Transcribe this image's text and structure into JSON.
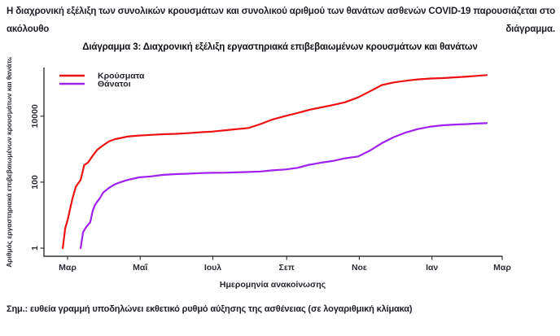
{
  "document": {
    "intro": "Η διαχρονική εξέλιξη των συνολικών κρουσμάτων και συνολικού αριθμού των θανάτων ασθενών COVID-19 παρουσιάζεται στο ακόλουθο διάγραμμα.",
    "note": "Σημ.: ευθεία γραμμή υποδηλώνει εκθετικό ρυθμό αύξησης της ασθένειας (σε λογαριθμική κλίμακα)"
  },
  "chart_data": {
    "type": "line",
    "title": "Διάγραμμα 3: Διαχρονική εξέλιξη εργαστηριακά επιβεβαιωμένων κρουσμάτων και θανάτων",
    "xlabel": "Ημερομηνία ανακοίνωσης",
    "ylabel": "Αριθμός εργαστηριακά επιβεβαιωμένων κρουσμάτων και θανάτων",
    "y_scale": "log",
    "ylim": [
      0.56,
      400000
    ],
    "y_ticks": [
      1,
      100,
      10000
    ],
    "x_ticks": [
      {
        "date": "2020-03-01",
        "label": "Μαρ"
      },
      {
        "date": "2020-05-01",
        "label": "Μαΐ"
      },
      {
        "date": "2020-07-01",
        "label": "Ιουλ"
      },
      {
        "date": "2020-09-01",
        "label": "Σεπ"
      },
      {
        "date": "2020-11-01",
        "label": "Νοε"
      },
      {
        "date": "2021-01-01",
        "label": "Ιαν"
      },
      {
        "date": "2021-03-01",
        "label": "Μαρ"
      }
    ],
    "legend_position": "top-left",
    "grid": false,
    "series": [
      {
        "id": "cases",
        "name": "Κρούσματα",
        "color": "#ee1111",
        "points": [
          [
            "2020-02-26",
            1
          ],
          [
            "2020-02-28",
            4
          ],
          [
            "2020-03-01",
            7
          ],
          [
            "2020-03-05",
            31
          ],
          [
            "2020-03-08",
            73
          ],
          [
            "2020-03-12",
            117
          ],
          [
            "2020-03-15",
            331
          ],
          [
            "2020-03-18",
            387
          ],
          [
            "2020-03-22",
            624
          ],
          [
            "2020-03-26",
            966
          ],
          [
            "2020-03-31",
            1314
          ],
          [
            "2020-04-05",
            1735
          ],
          [
            "2020-04-10",
            2011
          ],
          [
            "2020-04-15",
            2192
          ],
          [
            "2020-04-20",
            2401
          ],
          [
            "2020-04-30",
            2591
          ],
          [
            "2020-05-10",
            2716
          ],
          [
            "2020-05-20",
            2840
          ],
          [
            "2020-05-31",
            2917
          ],
          [
            "2020-06-10",
            3049
          ],
          [
            "2020-06-20",
            3256
          ],
          [
            "2020-06-30",
            3409
          ],
          [
            "2020-07-10",
            3672
          ],
          [
            "2020-07-20",
            4007
          ],
          [
            "2020-07-31",
            4401
          ],
          [
            "2020-08-10",
            5749
          ],
          [
            "2020-08-20",
            7934
          ],
          [
            "2020-08-31",
            10134
          ],
          [
            "2020-09-10",
            12452
          ],
          [
            "2020-09-20",
            15595
          ],
          [
            "2020-09-30",
            18475
          ],
          [
            "2020-10-10",
            21772
          ],
          [
            "2020-10-20",
            26469
          ],
          [
            "2020-10-31",
            37196
          ],
          [
            "2020-11-10",
            56698
          ],
          [
            "2020-11-20",
            87812
          ],
          [
            "2020-11-30",
            105271
          ],
          [
            "2020-12-10",
            118045
          ],
          [
            "2020-12-20",
            130510
          ],
          [
            "2020-12-31",
            138850
          ],
          [
            "2021-01-10",
            142777
          ],
          [
            "2021-01-20",
            149714
          ],
          [
            "2021-01-31",
            158716
          ],
          [
            "2021-02-07",
            165823
          ],
          [
            "2021-02-16",
            176352
          ]
        ]
      },
      {
        "id": "deaths",
        "name": "Θάνατοι",
        "color": "#a020f0",
        "points": [
          [
            "2020-03-12",
            1
          ],
          [
            "2020-03-14",
            3
          ],
          [
            "2020-03-16",
            4
          ],
          [
            "2020-03-18",
            5
          ],
          [
            "2020-03-20",
            6
          ],
          [
            "2020-03-22",
            13
          ],
          [
            "2020-03-24",
            20
          ],
          [
            "2020-03-26",
            26
          ],
          [
            "2020-03-28",
            32
          ],
          [
            "2020-03-31",
            49
          ],
          [
            "2020-04-05",
            68
          ],
          [
            "2020-04-10",
            87
          ],
          [
            "2020-04-15",
            101
          ],
          [
            "2020-04-20",
            116
          ],
          [
            "2020-04-30",
            140
          ],
          [
            "2020-05-10",
            150
          ],
          [
            "2020-05-20",
            166
          ],
          [
            "2020-05-31",
            175
          ],
          [
            "2020-06-10",
            180
          ],
          [
            "2020-06-20",
            188
          ],
          [
            "2020-06-30",
            192
          ],
          [
            "2020-07-10",
            193
          ],
          [
            "2020-07-20",
            198
          ],
          [
            "2020-07-31",
            203
          ],
          [
            "2020-08-10",
            210
          ],
          [
            "2020-08-20",
            228
          ],
          [
            "2020-08-31",
            243
          ],
          [
            "2020-09-10",
            271
          ],
          [
            "2020-09-20",
            338
          ],
          [
            "2020-09-30",
            391
          ],
          [
            "2020-10-10",
            441
          ],
          [
            "2020-10-20",
            528
          ],
          [
            "2020-10-31",
            601
          ],
          [
            "2020-11-10",
            909
          ],
          [
            "2020-11-20",
            1527
          ],
          [
            "2020-11-30",
            2321
          ],
          [
            "2020-12-10",
            3194
          ],
          [
            "2020-12-20",
            4044
          ],
          [
            "2020-12-31",
            4838
          ],
          [
            "2021-01-10",
            5302
          ],
          [
            "2021-01-20",
            5570
          ],
          [
            "2021-01-31",
            5764
          ],
          [
            "2021-02-07",
            5951
          ],
          [
            "2021-02-16",
            6152
          ]
        ]
      }
    ]
  }
}
